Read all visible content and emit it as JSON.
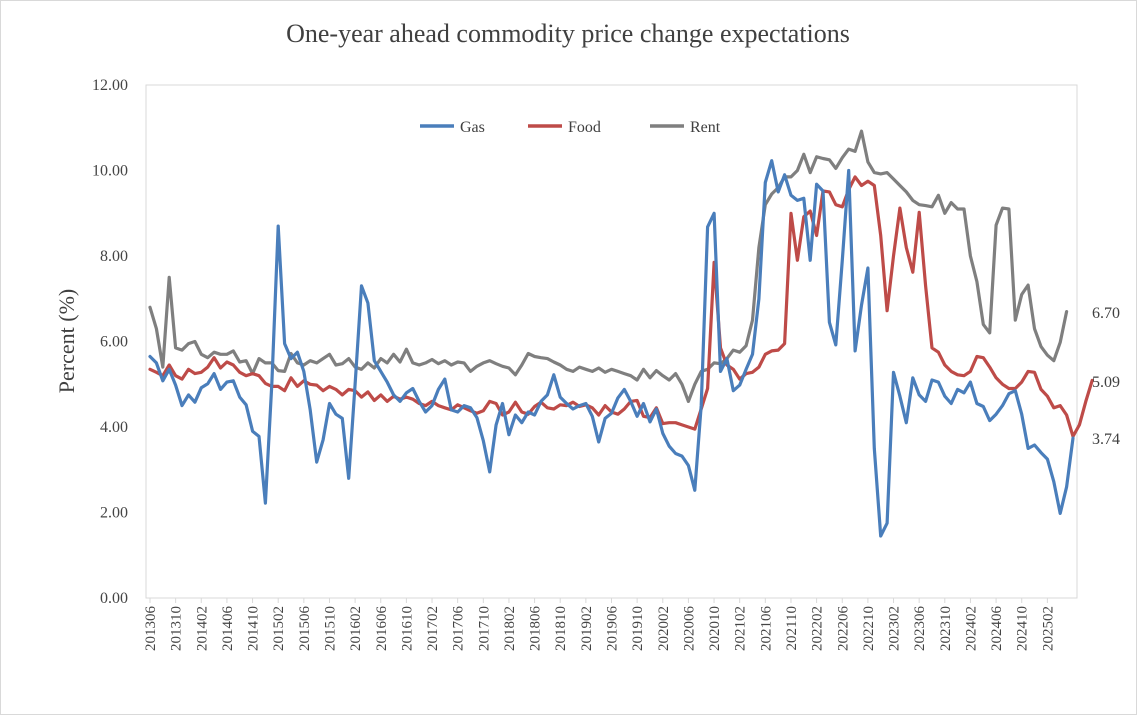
{
  "chart_data": {
    "type": "line",
    "title": "One-year ahead commodity price change expectations",
    "ylabel": "Percent (%)",
    "xlabel": "",
    "ylim": [
      0,
      12
    ],
    "yticks": [
      "0.00",
      "2.00",
      "4.00",
      "6.00",
      "8.00",
      "10.00",
      "12.00"
    ],
    "xtick_labels": [
      "201306",
      "201310",
      "201402",
      "201406",
      "201410",
      "201502",
      "201506",
      "201510",
      "201602",
      "201606",
      "201610",
      "201702",
      "201706",
      "201710",
      "201802",
      "201806",
      "201810",
      "201902",
      "201906",
      "201910",
      "202002",
      "202006",
      "202010",
      "202102",
      "202106",
      "202110",
      "202202",
      "202206",
      "202210",
      "202302",
      "202306",
      "202310",
      "202402",
      "202406",
      "202410",
      "202502"
    ],
    "legend": "top-center",
    "grid": false,
    "end_labels": [
      "6.70",
      "5.09",
      "3.74"
    ],
    "series": [
      {
        "name": "Gas",
        "color": "#4a7ebb",
        "values": [
          5.65,
          5.5,
          5.08,
          5.35,
          4.98,
          4.5,
          4.75,
          4.58,
          4.92,
          5.01,
          5.25,
          4.88,
          5.05,
          5.08,
          4.7,
          4.52,
          3.9,
          3.78,
          2.22,
          5.0,
          8.7,
          5.95,
          5.6,
          5.75,
          5.3,
          4.4,
          3.18,
          3.7,
          4.55,
          4.3,
          4.2,
          2.8,
          5.0,
          7.3,
          6.9,
          5.55,
          5.3,
          5.05,
          4.75,
          4.6,
          4.8,
          4.9,
          4.6,
          4.35,
          4.5,
          4.88,
          5.12,
          4.4,
          4.35,
          4.5,
          4.45,
          4.22,
          3.68,
          2.95,
          4.05,
          4.55,
          3.82,
          4.28,
          4.1,
          4.35,
          4.28,
          4.6,
          4.75,
          5.22,
          4.7,
          4.55,
          4.42,
          4.5,
          4.55,
          4.25,
          3.65,
          4.2,
          4.32,
          4.68,
          4.88,
          4.6,
          4.25,
          4.55,
          4.12,
          4.42,
          3.85,
          3.55,
          3.38,
          3.32,
          3.1,
          2.52,
          4.5,
          8.68,
          9.0,
          5.3,
          5.6,
          4.85,
          4.98,
          5.35,
          5.7,
          7.0,
          9.72,
          10.23,
          9.5,
          9.9,
          9.42,
          9.3,
          9.35,
          7.9,
          9.68,
          9.52,
          6.45,
          5.92,
          7.9,
          10.0,
          5.78,
          6.85,
          7.72,
          3.5,
          1.45,
          1.75,
          5.28,
          4.72,
          4.1,
          5.15,
          4.75,
          4.6,
          5.1,
          5.05,
          4.72,
          4.55,
          4.88,
          4.8,
          5.05,
          4.55,
          4.48,
          4.15,
          4.3,
          4.5,
          4.78,
          4.85,
          4.3,
          3.5,
          3.58,
          3.4,
          3.25,
          2.72,
          1.98,
          2.6,
          3.74
        ]
      },
      {
        "name": "Food",
        "color": "#be4b48",
        "values": [
          5.35,
          5.28,
          5.2,
          5.45,
          5.2,
          5.12,
          5.35,
          5.25,
          5.28,
          5.4,
          5.62,
          5.38,
          5.52,
          5.45,
          5.28,
          5.2,
          5.25,
          5.2,
          5.02,
          4.95,
          4.95,
          4.85,
          5.15,
          4.95,
          5.08,
          5.0,
          4.98,
          4.85,
          4.95,
          4.88,
          4.75,
          4.88,
          4.85,
          4.7,
          4.82,
          4.62,
          4.75,
          4.6,
          4.72,
          4.65,
          4.7,
          4.65,
          4.55,
          4.5,
          4.6,
          4.5,
          4.45,
          4.4,
          4.52,
          4.45,
          4.38,
          4.32,
          4.38,
          4.6,
          4.55,
          4.28,
          4.35,
          4.58,
          4.35,
          4.3,
          4.48,
          4.58,
          4.45,
          4.42,
          4.52,
          4.5,
          4.58,
          4.48,
          4.52,
          4.45,
          4.28,
          4.5,
          4.35,
          4.3,
          4.42,
          4.6,
          4.62,
          4.25,
          4.22,
          4.45,
          4.08,
          4.1,
          4.1,
          4.05,
          4.0,
          3.95,
          4.42,
          4.9,
          7.85,
          5.85,
          5.45,
          5.35,
          5.12,
          5.25,
          5.28,
          5.4,
          5.7,
          5.78,
          5.8,
          5.95,
          9.0,
          7.9,
          8.92,
          9.05,
          8.48,
          9.52,
          9.5,
          9.2,
          9.15,
          9.55,
          9.85,
          9.65,
          9.75,
          9.65,
          8.48,
          6.72,
          8.0,
          9.12,
          8.2,
          7.62,
          9.02,
          7.3,
          5.85,
          5.75,
          5.45,
          5.3,
          5.22,
          5.2,
          5.3,
          5.65,
          5.62,
          5.4,
          5.15,
          5.0,
          4.9,
          4.9,
          5.05,
          5.3,
          5.28,
          4.88,
          4.72,
          4.45,
          4.5,
          4.28,
          3.78,
          4.05,
          4.6,
          5.09
        ]
      },
      {
        "name": "Rent",
        "color": "#7f7f7f",
        "values": [
          6.8,
          6.3,
          5.4,
          7.5,
          5.85,
          5.8,
          5.95,
          6.0,
          5.7,
          5.62,
          5.75,
          5.7,
          5.7,
          5.78,
          5.52,
          5.55,
          5.25,
          5.6,
          5.5,
          5.5,
          5.32,
          5.3,
          5.72,
          5.5,
          5.45,
          5.55,
          5.5,
          5.6,
          5.7,
          5.45,
          5.48,
          5.6,
          5.4,
          5.35,
          5.5,
          5.38,
          5.6,
          5.5,
          5.7,
          5.52,
          5.82,
          5.5,
          5.45,
          5.5,
          5.58,
          5.48,
          5.55,
          5.45,
          5.52,
          5.5,
          5.3,
          5.42,
          5.5,
          5.55,
          5.48,
          5.42,
          5.38,
          5.22,
          5.45,
          5.72,
          5.65,
          5.62,
          5.6,
          5.52,
          5.45,
          5.35,
          5.3,
          5.4,
          5.35,
          5.3,
          5.38,
          5.28,
          5.35,
          5.3,
          5.25,
          5.2,
          5.1,
          5.35,
          5.15,
          5.32,
          5.2,
          5.1,
          5.25,
          5.0,
          4.6,
          5.0,
          5.3,
          5.35,
          5.5,
          5.48,
          5.6,
          5.8,
          5.75,
          5.9,
          6.5,
          8.2,
          9.2,
          9.45,
          9.6,
          9.85,
          9.85,
          10.0,
          10.38,
          9.95,
          10.32,
          10.28,
          10.25,
          10.05,
          10.3,
          10.5,
          10.45,
          10.92,
          10.2,
          9.95,
          9.92,
          9.95,
          9.8,
          9.65,
          9.5,
          9.3,
          9.2,
          9.18,
          9.15,
          9.42,
          9.0,
          9.25,
          9.1,
          9.1,
          8.0,
          7.4,
          6.4,
          6.2,
          8.72,
          9.12,
          9.1,
          6.5,
          7.1,
          7.32,
          6.3,
          5.88,
          5.68,
          5.55,
          5.98,
          6.7
        ]
      }
    ]
  }
}
